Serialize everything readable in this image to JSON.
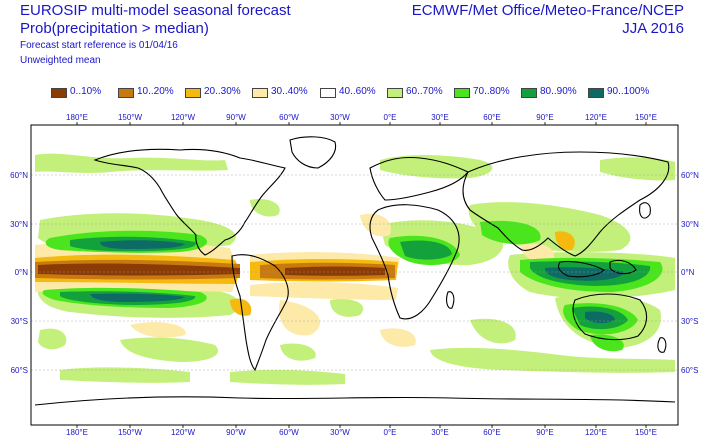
{
  "header": {
    "title_left_1": "EUROSIP multi-model seasonal forecast",
    "title_left_2": "Prob(precipitation > median)",
    "title_left_3": "Forecast start reference is 01/04/16",
    "title_left_4": "Unweighted mean",
    "title_right_1": "ECMWF/Met Office/Meteo-France/NCEP",
    "title_right_2": "JJA 2016"
  },
  "legend": [
    {
      "label": "0..10%",
      "color": "#8b3b05"
    },
    {
      "label": "10..20%",
      "color": "#c87a10"
    },
    {
      "label": "20..30%",
      "color": "#f5b90f"
    },
    {
      "label": "30..40%",
      "color": "#fde9a8"
    },
    {
      "label": "40..60%",
      "color": "#ffffff"
    },
    {
      "label": "60..70%",
      "color": "#c3f07a"
    },
    {
      "label": "70..80%",
      "color": "#4be51e"
    },
    {
      "label": "80..90%",
      "color": "#13a13c"
    },
    {
      "label": "90..100%",
      "color": "#0e6a64"
    }
  ],
  "axes": {
    "lon_labels": [
      "180°E",
      "150°W",
      "120°W",
      "90°W",
      "60°W",
      "30°W",
      "0°E",
      "30°E",
      "60°E",
      "90°E",
      "120°E",
      "150°E"
    ],
    "lat_labels": [
      "60°N",
      "30°N",
      "0°N",
      "30°S",
      "60°S"
    ]
  }
}
